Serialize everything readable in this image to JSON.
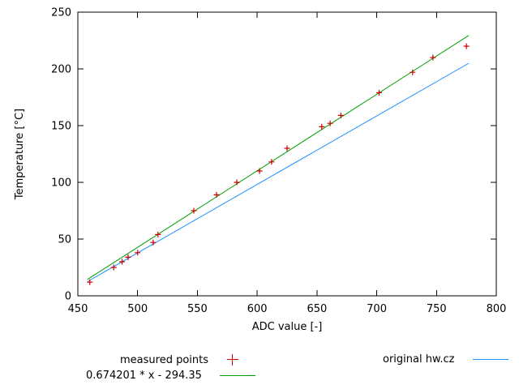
{
  "chart_data": {
    "type": "scatter",
    "title": "",
    "xlabel": "ADC value [-]",
    "ylabel": "Temperature [°C]",
    "xlim": [
      450,
      800
    ],
    "ylim": [
      0,
      250
    ],
    "xticks": [
      450,
      500,
      550,
      600,
      650,
      700,
      750,
      800
    ],
    "yticks": [
      0,
      50,
      100,
      150,
      200,
      250
    ],
    "grid": false,
    "legend_position": "below-plot",
    "series": [
      {
        "name": "measured points",
        "type": "points",
        "marker": "plus",
        "color": "#cc0000",
        "points": [
          [
            460,
            12
          ],
          [
            480,
            25
          ],
          [
            487,
            30
          ],
          [
            492,
            34
          ],
          [
            500,
            38
          ],
          [
            513,
            47
          ],
          [
            517,
            54
          ],
          [
            547,
            75
          ],
          [
            566,
            89
          ],
          [
            583,
            100
          ],
          [
            602,
            110
          ],
          [
            612,
            118
          ],
          [
            625,
            130
          ],
          [
            654,
            149
          ],
          [
            661,
            152
          ],
          [
            670,
            159
          ],
          [
            702,
            179
          ],
          [
            730,
            197
          ],
          [
            747,
            210
          ],
          [
            775,
            220
          ]
        ]
      },
      {
        "name": "0.674201 * x - 294.35",
        "type": "line",
        "color": "#00a000",
        "slope": 0.674201,
        "intercept": -294.35,
        "x_range": [
          458,
          777
        ]
      },
      {
        "name": "original hw.cz",
        "type": "line",
        "color": "#1e90ff",
        "points": [
          [
            458,
            12.5
          ],
          [
            777,
            205
          ]
        ]
      }
    ]
  }
}
